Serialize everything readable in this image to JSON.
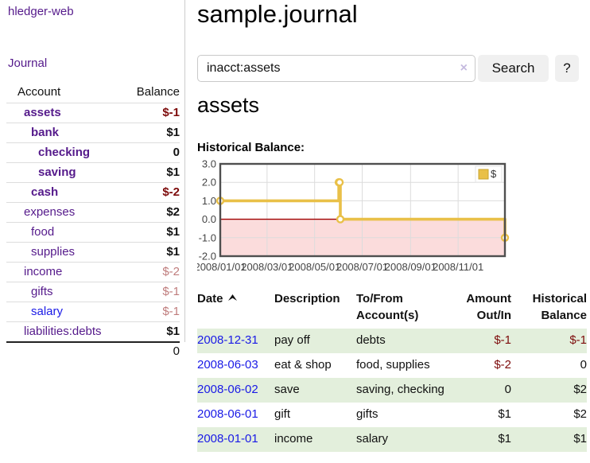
{
  "app": {
    "title": "hledger-web",
    "nav_journal": "Journal"
  },
  "colors": {
    "link_purple": "#551a8b",
    "link_blue": "#1a1ae6",
    "negative_strong": "#7d0b0b",
    "negative_dim": "#bf7c7c",
    "row_green": "#e3efdc",
    "divider": "#cccccc"
  },
  "accounts_panel": {
    "col_account": "Account",
    "col_balance": "Balance",
    "rows": [
      {
        "name": "assets",
        "balance": "$-1",
        "depth": 0,
        "bold": true,
        "balance_style": "neg"
      },
      {
        "name": "bank",
        "balance": "$1",
        "depth": 1,
        "bold": true,
        "balance_style": "pos"
      },
      {
        "name": "checking",
        "balance": "0",
        "depth": 2,
        "bold": true,
        "balance_style": "pos"
      },
      {
        "name": "saving",
        "balance": "$1",
        "depth": 2,
        "bold": true,
        "balance_style": "pos"
      },
      {
        "name": "cash",
        "balance": "$-2",
        "depth": 1,
        "bold": true,
        "balance_style": "neg"
      },
      {
        "name": "expenses",
        "balance": "$2",
        "depth": 0,
        "bold": false,
        "balance_style": "pos"
      },
      {
        "name": "food",
        "balance": "$1",
        "depth": 1,
        "bold": false,
        "balance_style": "pos"
      },
      {
        "name": "supplies",
        "balance": "$1",
        "depth": 1,
        "bold": false,
        "balance_style": "pos"
      },
      {
        "name": "income",
        "balance": "$-2",
        "depth": 0,
        "bold": false,
        "balance_style": "neg-dim"
      },
      {
        "name": "gifts",
        "balance": "$-1",
        "depth": 1,
        "bold": false,
        "balance_style": "neg-dim"
      },
      {
        "name": "salary",
        "balance": "$-1",
        "depth": 1,
        "bold": false,
        "balance_style": "neg-dim",
        "link_style": "blue"
      },
      {
        "name": "liabilities:debts",
        "balance": "$1",
        "depth": 0,
        "bold": false,
        "balance_style": "pos"
      }
    ],
    "total": "0"
  },
  "main": {
    "title": "sample.journal",
    "search": {
      "value": "inacct:assets",
      "clear_icon": "×",
      "button_label": "Search",
      "help_label": "?"
    },
    "account_heading": "assets",
    "chart_label": "Historical Balance:"
  },
  "chart_data": {
    "type": "line",
    "step": true,
    "title": "Historical Balance:",
    "legend_label": "$",
    "legend_position": "top-right",
    "series": [
      {
        "name": "$",
        "color": "#e9c048",
        "marker_fill": "#ffffff",
        "points": [
          [
            "2008-01-01",
            1
          ],
          [
            "2008-06-01",
            2
          ],
          [
            "2008-06-02",
            2
          ],
          [
            "2008-06-03",
            0
          ],
          [
            "2008-12-31",
            -1
          ]
        ]
      }
    ],
    "x_min": "2008-01-01",
    "x_max": "2008-12-31",
    "x_ticks": [
      {
        "date": "2008-01-01",
        "label": "2008/01/01"
      },
      {
        "date": "2008-03-01",
        "label": "2008/03/01"
      },
      {
        "date": "2008-05-01",
        "label": "2008/05/01"
      },
      {
        "date": "2008-07-01",
        "label": "2008/07/01"
      },
      {
        "date": "2008-09-01",
        "label": "2008/09/01"
      },
      {
        "date": "2008-11-01",
        "label": "2008/11/01"
      }
    ],
    "y_ticks": [
      {
        "value": 3,
        "label": "3.0"
      },
      {
        "value": 2,
        "label": "2.0"
      },
      {
        "value": 1,
        "label": "1.0"
      },
      {
        "value": 0,
        "label": "0.0"
      },
      {
        "value": -1,
        "label": "-1.0"
      },
      {
        "value": -2,
        "label": "-2.0"
      }
    ],
    "ylim": [
      -2,
      3
    ],
    "grid": true,
    "grid_color": "#dcdcdc",
    "border_color": "#4f4f4f",
    "zero_line_color": "#a00000",
    "negative_region_color": "#fbdcdc",
    "tick_color": "#444444"
  },
  "transactions": {
    "columns": {
      "date": "Date",
      "sort_icon": "chevron-up",
      "description": "Description",
      "accounts": "To/From Account(s)",
      "amount": "Amount Out/In",
      "balance": "Historical Balance"
    },
    "rows": [
      {
        "date": "2008-12-31",
        "description": "pay off",
        "accounts": "debts",
        "amount": "$-1",
        "amount_neg": true,
        "balance": "$-1",
        "balance_neg": true
      },
      {
        "date": "2008-06-03",
        "description": "eat & shop",
        "accounts": "food, supplies",
        "amount": "$-2",
        "amount_neg": true,
        "balance": "0",
        "balance_neg": false
      },
      {
        "date": "2008-06-02",
        "description": "save",
        "accounts": "saving, checking",
        "amount": "0",
        "amount_neg": false,
        "balance": "$2",
        "balance_neg": false
      },
      {
        "date": "2008-06-01",
        "description": "gift",
        "accounts": "gifts",
        "amount": "$1",
        "amount_neg": false,
        "balance": "$2",
        "balance_neg": false
      },
      {
        "date": "2008-01-01",
        "description": "income",
        "accounts": "salary",
        "amount": "$1",
        "amount_neg": false,
        "balance": "$1",
        "balance_neg": false
      }
    ]
  }
}
